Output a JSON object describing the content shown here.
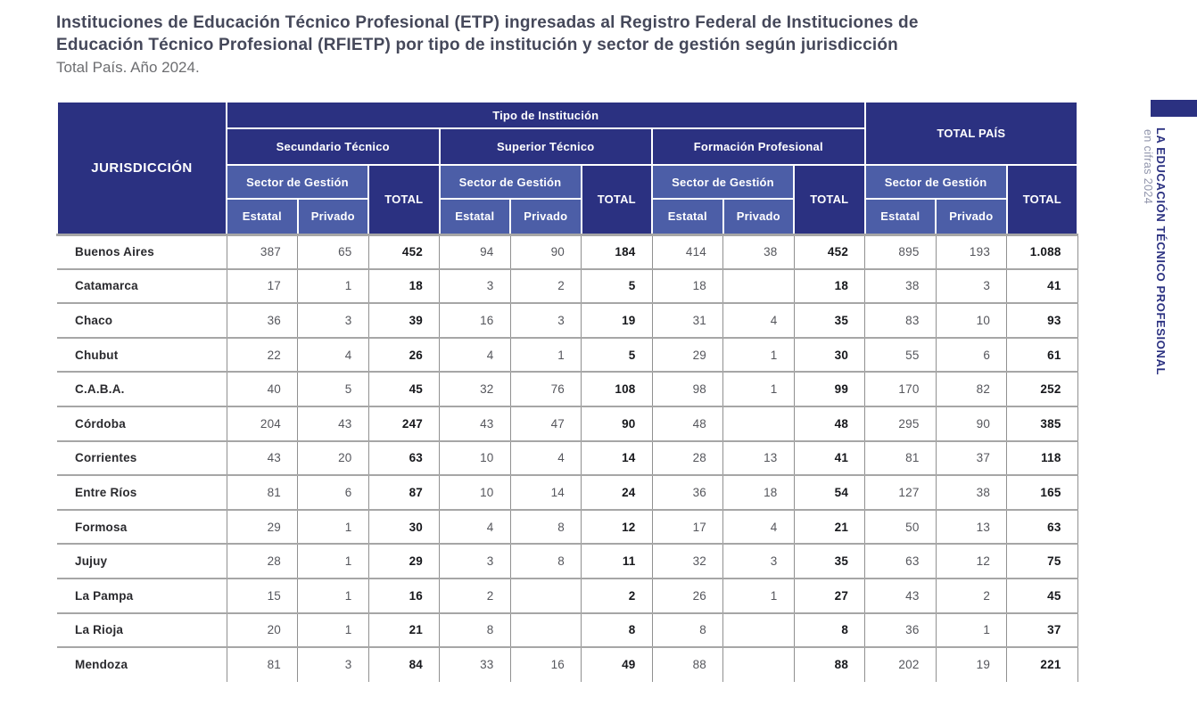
{
  "page": {
    "title_lines": [
      "Instituciones de Educación Técnico Profesional (ETP) ingresadas al Registro Federal de Instituciones de",
      "Educación Técnico Profesional (RFIETP) por tipo de institución y sector de gestión según jurisdicción"
    ],
    "subtitle": "Total País. Año 2024."
  },
  "colors": {
    "header_navy": "#2b3181",
    "header_light_blue": "#4c5ea7",
    "title_text": "#45485a",
    "subtitle_text": "#6d6e71"
  },
  "table": {
    "headers": {
      "jurisdiction": "JURISDICCIÓN",
      "tipo_institucion": "Tipo de Institución",
      "group_secundario": "Secundario Técnico",
      "group_superior": "Superior Técnico",
      "group_formacion": "Formación Profesional",
      "total_pais": "TOTAL PAÍS",
      "sector_gestion": "Sector de Gestión",
      "estatal": "Estatal",
      "privado": "Privado",
      "total": "TOTAL"
    },
    "rows": [
      {
        "name": "Buenos Aires",
        "values": [
          "387",
          "65",
          "452",
          "94",
          "90",
          "184",
          "414",
          "38",
          "452",
          "895",
          "193",
          "1.088"
        ]
      },
      {
        "name": "Catamarca",
        "values": [
          "17",
          "1",
          "18",
          "3",
          "2",
          "5",
          "18",
          "",
          "18",
          "38",
          "3",
          "41"
        ]
      },
      {
        "name": "Chaco",
        "values": [
          "36",
          "3",
          "39",
          "16",
          "3",
          "19",
          "31",
          "4",
          "35",
          "83",
          "10",
          "93"
        ]
      },
      {
        "name": "Chubut",
        "values": [
          "22",
          "4",
          "26",
          "4",
          "1",
          "5",
          "29",
          "1",
          "30",
          "55",
          "6",
          "61"
        ]
      },
      {
        "name": "C.A.B.A.",
        "values": [
          "40",
          "5",
          "45",
          "32",
          "76",
          "108",
          "98",
          "1",
          "99",
          "170",
          "82",
          "252"
        ]
      },
      {
        "name": "Córdoba",
        "values": [
          "204",
          "43",
          "247",
          "43",
          "47",
          "90",
          "48",
          "",
          "48",
          "295",
          "90",
          "385"
        ]
      },
      {
        "name": "Corrientes",
        "values": [
          "43",
          "20",
          "63",
          "10",
          "4",
          "14",
          "28",
          "13",
          "41",
          "81",
          "37",
          "118"
        ]
      },
      {
        "name": "Entre Ríos",
        "values": [
          "81",
          "6",
          "87",
          "10",
          "14",
          "24",
          "36",
          "18",
          "54",
          "127",
          "38",
          "165"
        ]
      },
      {
        "name": "Formosa",
        "values": [
          "29",
          "1",
          "30",
          "4",
          "8",
          "12",
          "17",
          "4",
          "21",
          "50",
          "13",
          "63"
        ]
      },
      {
        "name": "Jujuy",
        "values": [
          "28",
          "1",
          "29",
          "3",
          "8",
          "11",
          "32",
          "3",
          "35",
          "63",
          "12",
          "75"
        ]
      },
      {
        "name": "La Pampa",
        "values": [
          "15",
          "1",
          "16",
          "2",
          "",
          "2",
          "26",
          "1",
          "27",
          "43",
          "2",
          "45"
        ]
      },
      {
        "name": "La Rioja",
        "values": [
          "20",
          "1",
          "21",
          "8",
          "",
          "8",
          "8",
          "",
          "8",
          "36",
          "1",
          "37"
        ]
      },
      {
        "name": "Mendoza",
        "values": [
          "81",
          "3",
          "84",
          "33",
          "16",
          "49",
          "88",
          "",
          "88",
          "202",
          "19",
          "221"
        ]
      }
    ]
  },
  "sidebar": {
    "title": "LA EDUCACIÓN TÉCNICO PROFESIONAL",
    "subtitle": "en cifras 2024"
  }
}
